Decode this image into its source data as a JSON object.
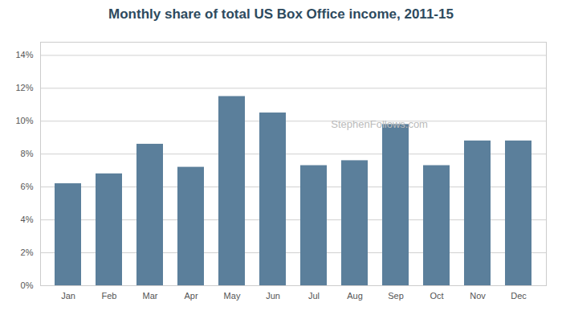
{
  "chart_data": {
    "type": "bar",
    "title": "Monthly share of total US Box Office income, 2011-15",
    "categories": [
      "Jan",
      "Feb",
      "Mar",
      "Apr",
      "May",
      "Jun",
      "Jul",
      "Aug",
      "Sep",
      "Oct",
      "Nov",
      "Dec"
    ],
    "values": [
      6.2,
      6.8,
      8.6,
      7.2,
      11.5,
      10.5,
      7.3,
      7.6,
      9.8,
      7.3,
      8.8,
      8.8
    ],
    "color": "#5b7f9b",
    "ylim": [
      0,
      14.8
    ],
    "yticks": [
      {
        "value": 0,
        "label": "0%"
      },
      {
        "value": 2,
        "label": "2%"
      },
      {
        "value": 4,
        "label": "4%"
      },
      {
        "value": 6,
        "label": "6%"
      },
      {
        "value": 8,
        "label": "8%"
      },
      {
        "value": 10,
        "label": "10%"
      },
      {
        "value": 12,
        "label": "12%"
      },
      {
        "value": 14,
        "label": "14%"
      }
    ],
    "grid": true,
    "annotation": "StephenFollows.com"
  }
}
